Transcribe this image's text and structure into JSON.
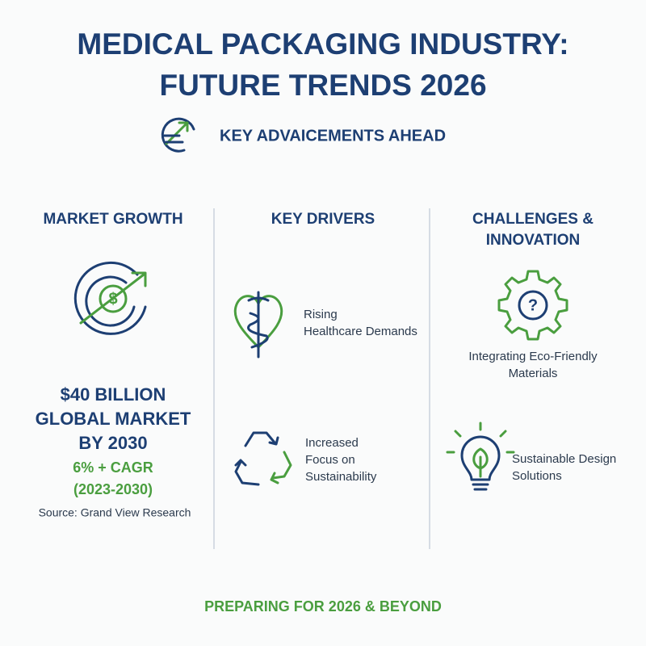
{
  "header": {
    "title_lines": [
      "MEDICAL PACKAGING INDUSTRY:",
      "FUTURE TRENDS 2026"
    ],
    "subtitle": "KEY ADVAICEMENTS AHEAD"
  },
  "columns": [
    {
      "heading": [
        "MARKET GROWTH"
      ],
      "stat": [
        "$40 BILLION",
        "GLOBAL MARKET",
        "BY 2030"
      ],
      "growth": [
        "6% + CAGR",
        "(2023-2030)"
      ],
      "source": "Source: Grand View Research"
    },
    {
      "heading": [
        "KEY DRIVERS"
      ],
      "items": [
        [
          "Rising",
          "Healthcare Demands"
        ],
        [
          "Increased",
          "Focus on",
          "Sustainability"
        ]
      ]
    },
    {
      "heading": [
        "CHALLENGES &",
        "INNOVATION"
      ],
      "items": [
        [
          "Integrating Eco-Friendly",
          "Materials"
        ],
        [
          "Sustainable Design",
          "Solutions"
        ]
      ]
    }
  ],
  "footer": "PREPARING FOR 2026 & BEYOND"
}
